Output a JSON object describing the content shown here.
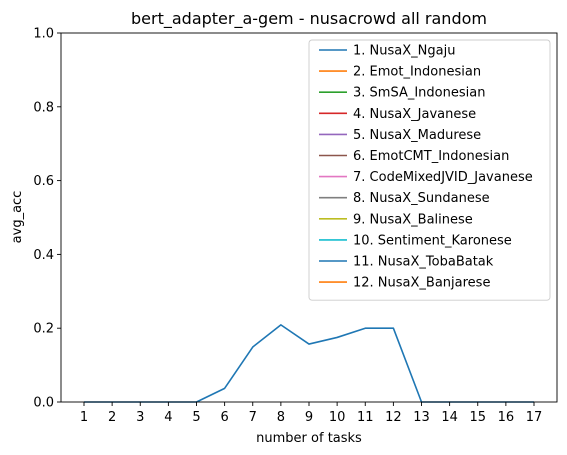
{
  "chart_data": {
    "type": "line",
    "title": "bert_adapter_a-gem - nusacrowd all random",
    "xlabel": "number of tasks",
    "ylabel": "avg_acc",
    "xlim": [
      1,
      17
    ],
    "ylim": [
      0,
      1.0
    ],
    "x_ticks": [
      "1",
      "2",
      "3",
      "4",
      "5",
      "6",
      "7",
      "8",
      "9",
      "10",
      "11",
      "12",
      "13",
      "14",
      "15",
      "16",
      "17"
    ],
    "y_ticks": [
      "0.0",
      "0.2",
      "0.4",
      "0.6",
      "0.8",
      "1.0"
    ],
    "grid": false,
    "legend_position": "top-right",
    "series": [
      {
        "name": "1. NusaX_Ngaju",
        "color": "#1f77b4",
        "x": [
          1,
          2,
          3,
          4,
          5,
          6,
          7,
          8,
          9,
          10,
          11,
          12,
          13,
          14,
          15,
          16,
          17
        ],
        "values": [
          0.0,
          0.0,
          0.0,
          0.0,
          0.0,
          0.037,
          0.149,
          0.209,
          0.157,
          0.175,
          0.2,
          0.2,
          0.0,
          0.0,
          0.0,
          0.0,
          0.0
        ]
      },
      {
        "name": "2. Emot_Indonesian",
        "color": "#ff7f0e",
        "x": [],
        "values": []
      },
      {
        "name": "3. SmSA_Indonesian",
        "color": "#2ca02c",
        "x": [],
        "values": []
      },
      {
        "name": "4. NusaX_Javanese",
        "color": "#d62728",
        "x": [],
        "values": []
      },
      {
        "name": "5. NusaX_Madurese",
        "color": "#9467bd",
        "x": [],
        "values": []
      },
      {
        "name": "6. EmotCMT_Indonesian",
        "color": "#8c564b",
        "x": [],
        "values": []
      },
      {
        "name": "7. CodeMixedJVID_Javanese",
        "color": "#e377c2",
        "x": [],
        "values": []
      },
      {
        "name": "8. NusaX_Sundanese",
        "color": "#7f7f7f",
        "x": [],
        "values": []
      },
      {
        "name": "9. NusaX_Balinese",
        "color": "#bcbd22",
        "x": [],
        "values": []
      },
      {
        "name": "10. Sentiment_Karonese",
        "color": "#17becf",
        "x": [],
        "values": []
      },
      {
        "name": "11. NusaX_TobaBatak",
        "color": "#1f77b4",
        "x": [],
        "values": []
      },
      {
        "name": "12. NusaX_Banjarese",
        "color": "#ff7f0e",
        "x": [],
        "values": []
      }
    ]
  }
}
